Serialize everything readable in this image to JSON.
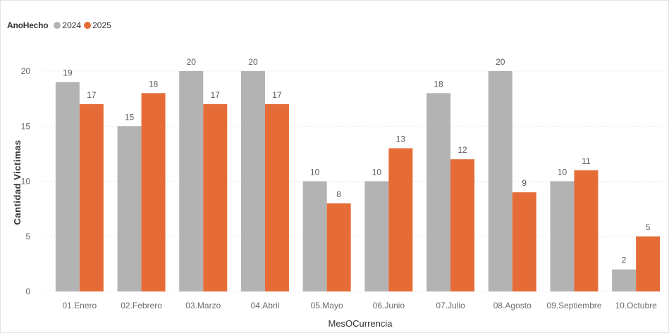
{
  "chart_data": {
    "type": "bar",
    "legend": {
      "title": "AnoHecho",
      "placement": "top-left"
    },
    "categories": [
      "01.Enero",
      "02.Febrero",
      "03.Marzo",
      "04.Abril",
      "05.Mayo",
      "06.Junio",
      "07.Julio",
      "08.Agosto",
      "09.Septiembre",
      "10.Octubre"
    ],
    "series": [
      {
        "name": "2024",
        "color": "#b3b3b3",
        "values": [
          19,
          15,
          20,
          20,
          10,
          10,
          18,
          20,
          10,
          2
        ]
      },
      {
        "name": "2025",
        "color": "#e66c37",
        "values": [
          17,
          18,
          17,
          17,
          8,
          13,
          12,
          9,
          11,
          5
        ]
      }
    ],
    "xlabel": "MesOCurrencia",
    "ylabel": "Cantidad Victimas",
    "ylim": [
      0,
      20
    ],
    "yticks": [
      0,
      5,
      10,
      15,
      20
    ],
    "grid": true,
    "data_labels": true
  }
}
